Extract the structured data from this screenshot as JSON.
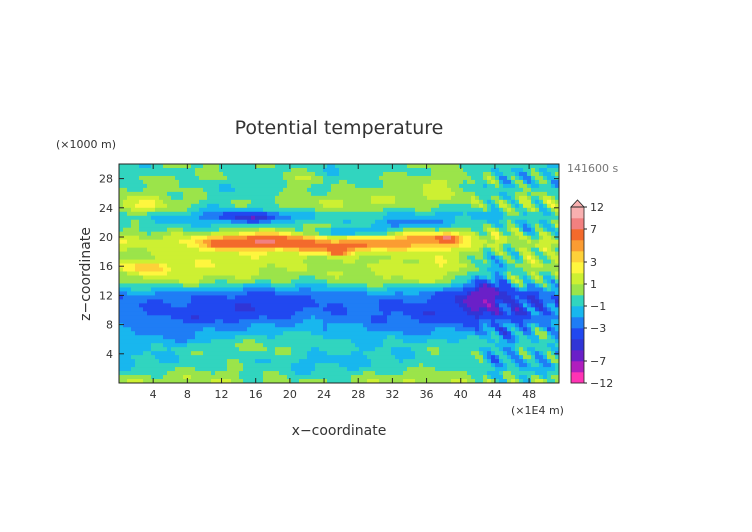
{
  "chart_data": {
    "type": "heatmap",
    "title": "Potential temperature",
    "xlabel": "x−coordinate",
    "ylabel": "z−coordinate",
    "x_unit": "(×1E4 m)",
    "y_unit": "(×1000 m)",
    "time_label": "141600 s",
    "xlim": [
      0,
      51.5
    ],
    "ylim": [
      0,
      30
    ],
    "x_ticks": [
      "4",
      "8",
      "12",
      "16",
      "20",
      "24",
      "28",
      "32",
      "36",
      "40",
      "44",
      "48"
    ],
    "y_ticks": [
      "4",
      "8",
      "12",
      "16",
      "20",
      "24",
      "28"
    ],
    "colorbar": {
      "labels": [
        "12",
        "7",
        "3",
        "1",
        "−1",
        "−3",
        "−7",
        "−12"
      ],
      "levels": [
        -12,
        -9,
        -7,
        -5,
        -4,
        -3,
        -2,
        -1,
        0,
        1,
        2,
        3,
        4,
        5,
        7,
        9,
        12
      ],
      "colors": [
        "#ff33b4",
        "#b01ebe",
        "#6a20c8",
        "#3035d6",
        "#2148f0",
        "#1f7df5",
        "#18b7ee",
        "#31d5bf",
        "#9be44a",
        "#cdf032",
        "#fef63e",
        "#fed139",
        "#fb9c32",
        "#f36a2c",
        "#f28080",
        "#f9b0b0"
      ]
    },
    "field": {
      "z": [
        0,
        1,
        2,
        3,
        4,
        5,
        6,
        7,
        8,
        9,
        10,
        11,
        12,
        13,
        14,
        15,
        16,
        17,
        18,
        19,
        20,
        21,
        22,
        23,
        24,
        25,
        26,
        27,
        28,
        29,
        30
      ],
      "theta_profile": [
        0.6,
        0.1,
        -0.6,
        -0.9,
        -0.6,
        -0.4,
        -0.8,
        -1.6,
        -2.3,
        -3.0,
        -3.3,
        -3.3,
        -2.9,
        -1.4,
        0.4,
        1.1,
        1.3,
        1.1,
        1.3,
        2.0,
        1.5,
        0.2,
        -0.6,
        -1.0,
        0.2,
        0.6,
        0.0,
        -0.4,
        -0.2,
        -0.6,
        -0.4
      ],
      "features": [
        {
          "x": 13.5,
          "z": 19.2,
          "dx": 5.0,
          "dz": 0.9,
          "value": 3.5
        },
        {
          "x": 18.5,
          "z": 19.6,
          "dx": 5.0,
          "dz": 1.0,
          "value": 3.0
        },
        {
          "x": 24.5,
          "z": 18.6,
          "dx": 5.0,
          "dz": 0.8,
          "value": 3.0
        },
        {
          "x": 30.0,
          "z": 19.0,
          "dx": 6.0,
          "dz": 1.0,
          "value": 2.5
        },
        {
          "x": 36.0,
          "z": 19.8,
          "dx": 4.5,
          "dz": 1.0,
          "value": 3.0
        },
        {
          "x": 38.5,
          "z": 19.8,
          "dx": 1.0,
          "dz": 0.5,
          "value": 4.0
        },
        {
          "x": 25.5,
          "z": 17.8,
          "dx": 1.2,
          "dz": 0.5,
          "value": 3.5
        },
        {
          "x": 16.0,
          "z": 22.7,
          "dx": 5.0,
          "dz": 0.8,
          "value": -3.5
        },
        {
          "x": 26.0,
          "z": 20.6,
          "dx": 4.5,
          "dz": 0.6,
          "value": -3.0
        },
        {
          "x": 33.5,
          "z": 21.8,
          "dx": 4.0,
          "dz": 0.6,
          "value": -2.0
        },
        {
          "x": 44.0,
          "z": 17.0,
          "dx": 3.0,
          "dz": 3.0,
          "value": -2.5
        },
        {
          "x": 49.0,
          "z": 20.0,
          "dx": 3.0,
          "dz": 2.0,
          "value": -1.5
        },
        {
          "x": 42.5,
          "z": 12.5,
          "dx": 2.5,
          "dz": 2.5,
          "value": -3.0
        },
        {
          "x": 45.0,
          "z": 5.0,
          "dx": 3.0,
          "dz": 3.5,
          "value": -1.5
        },
        {
          "x": 5.0,
          "z": 6.0,
          "dx": 6.0,
          "dz": 1.0,
          "value": -0.8
        },
        {
          "x": 3.0,
          "z": 24.0,
          "dx": 3.0,
          "dz": 1.0,
          "value": 1.5
        },
        {
          "x": 3.0,
          "z": 15.8,
          "dx": 3.0,
          "dz": 0.8,
          "value": 2.5
        },
        {
          "x": 21.0,
          "z": 28.0,
          "dx": 3.0,
          "dz": 2.0,
          "value": 1.5
        },
        {
          "x": 38.0,
          "z": 26.5,
          "dx": 3.0,
          "dz": 2.0,
          "value": 1.5
        },
        {
          "x": 11.0,
          "z": 25.0,
          "dx": 4.0,
          "dz": 2.0,
          "value": -0.5
        }
      ]
    }
  }
}
